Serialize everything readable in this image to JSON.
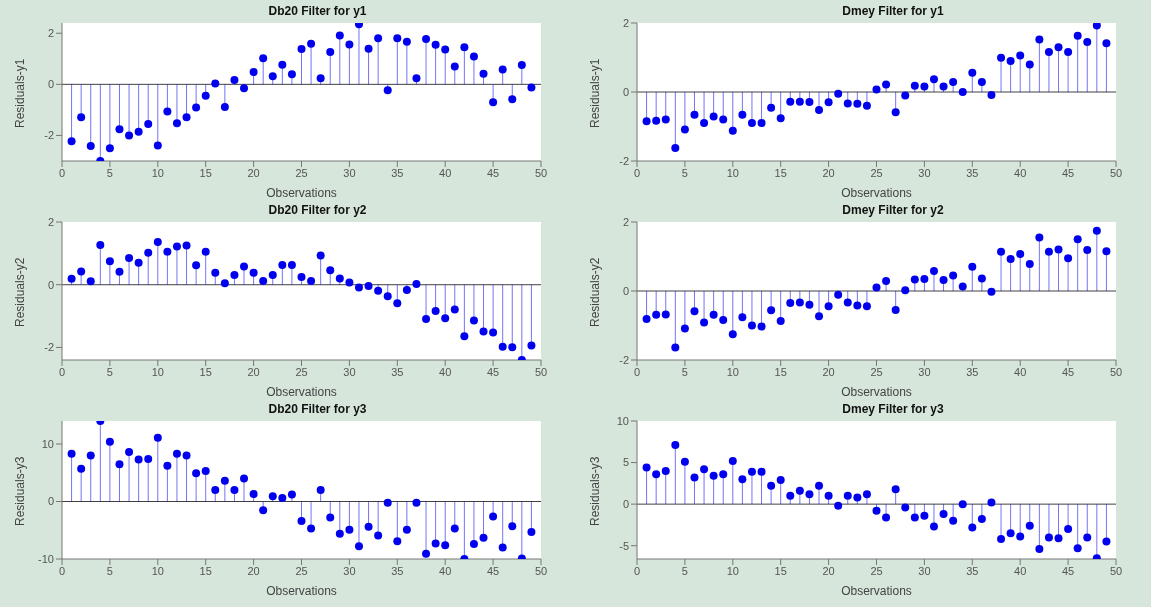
{
  "chart_data": [
    {
      "type": "lollipop",
      "title": "Db20 Filter for y1",
      "xlabel": "Observations",
      "ylabel": "Residuals-y1",
      "marker": "circle",
      "color": "#0000ee",
      "xlim": [
        0,
        50
      ],
      "xticks": [
        0,
        5,
        10,
        15,
        20,
        25,
        30,
        35,
        40,
        45,
        50
      ],
      "ylim": [
        -3,
        2.4
      ],
      "yticks": [
        -2,
        0,
        2
      ],
      "ref_lines": [
        {
          "axis": "y",
          "value": 0,
          "color": "#404040"
        }
      ],
      "x": [
        1,
        2,
        3,
        4,
        5,
        6,
        7,
        8,
        9,
        10,
        11,
        12,
        13,
        14,
        15,
        16,
        17,
        18,
        19,
        20,
        21,
        22,
        23,
        24,
        25,
        26,
        27,
        28,
        29,
        30,
        31,
        32,
        33,
        34,
        35,
        36,
        37,
        38,
        39,
        40,
        41,
        42,
        43,
        44,
        45,
        46,
        47,
        48,
        49
      ],
      "values": [
        -2.23,
        -1.29,
        -2.41,
        -3.0,
        -2.5,
        -1.76,
        -2.0,
        -1.86,
        -1.55,
        -2.39,
        -1.06,
        -1.52,
        -1.29,
        -0.91,
        -0.45,
        0.03,
        -0.89,
        0.17,
        -0.15,
        0.48,
        1.02,
        0.32,
        0.77,
        0.39,
        1.38,
        1.59,
        0.24,
        1.27,
        1.91,
        1.56,
        2.35,
        1.39,
        1.8,
        -0.23,
        1.8,
        1.67,
        0.24,
        1.77,
        1.55,
        1.36,
        0.7,
        1.45,
        1.09,
        0.41,
        -0.7,
        0.58,
        -0.58,
        0.76,
        -0.12
      ]
    },
    {
      "type": "lollipop",
      "title": "Dmey Filter for y1",
      "xlabel": "Observations",
      "ylabel": "Residuals-y1",
      "marker": "circle",
      "color": "#0000ee",
      "xlim": [
        0,
        50
      ],
      "xticks": [
        0,
        5,
        10,
        15,
        20,
        25,
        30,
        35,
        40,
        45,
        50
      ],
      "ylim": [
        -2,
        2
      ],
      "yticks": [
        -2,
        0,
        2
      ],
      "ref_lines": [
        {
          "axis": "y",
          "value": 0,
          "color": "#404040"
        }
      ],
      "x": [
        1,
        2,
        3,
        4,
        5,
        6,
        7,
        8,
        9,
        10,
        11,
        12,
        13,
        14,
        15,
        16,
        17,
        18,
        19,
        20,
        21,
        22,
        23,
        24,
        25,
        26,
        27,
        28,
        29,
        30,
        31,
        32,
        33,
        34,
        35,
        36,
        37,
        38,
        39,
        40,
        41,
        42,
        43,
        44,
        45,
        46,
        47,
        48,
        49
      ],
      "values": [
        -0.85,
        -0.83,
        -0.8,
        -1.62,
        -1.09,
        -0.66,
        -0.9,
        -0.71,
        -0.8,
        -1.12,
        -0.66,
        -0.9,
        -0.9,
        -0.46,
        -0.76,
        -0.28,
        -0.28,
        -0.29,
        -0.52,
        -0.3,
        -0.05,
        -0.33,
        -0.34,
        -0.4,
        0.07,
        0.22,
        -0.59,
        -0.1,
        0.18,
        0.16,
        0.37,
        0.16,
        0.29,
        0.0,
        0.56,
        0.29,
        -0.09,
        0.99,
        0.9,
        1.06,
        0.8,
        1.52,
        1.16,
        1.3,
        1.16,
        1.63,
        1.45,
        1.93,
        1.41
      ]
    },
    {
      "type": "lollipop",
      "title": "Db20 Filter for y2",
      "xlabel": "Observations",
      "ylabel": "Residuals-y2",
      "marker": "circle",
      "color": "#0000ee",
      "xlim": [
        0,
        50
      ],
      "xticks": [
        0,
        5,
        10,
        15,
        20,
        25,
        30,
        35,
        40,
        45,
        50
      ],
      "ylim": [
        -2.4,
        2
      ],
      "yticks": [
        -2,
        0,
        2
      ],
      "ref_lines": [
        {
          "axis": "y",
          "value": 0,
          "color": "#404040"
        }
      ],
      "x": [
        1,
        2,
        3,
        4,
        5,
        6,
        7,
        8,
        9,
        10,
        11,
        12,
        13,
        14,
        15,
        16,
        17,
        18,
        19,
        20,
        21,
        22,
        23,
        24,
        25,
        26,
        27,
        28,
        29,
        30,
        31,
        32,
        33,
        34,
        35,
        36,
        37,
        38,
        39,
        40,
        41,
        42,
        43,
        44,
        45,
        46,
        47,
        48,
        49
      ],
      "values": [
        0.19,
        0.42,
        0.11,
        1.27,
        0.75,
        0.41,
        0.85,
        0.7,
        1.02,
        1.36,
        1.05,
        1.22,
        1.25,
        0.62,
        1.05,
        0.38,
        0.05,
        0.31,
        0.58,
        0.38,
        0.12,
        0.31,
        0.63,
        0.63,
        0.25,
        0.12,
        0.93,
        0.46,
        0.2,
        0.07,
        -0.09,
        -0.04,
        -0.19,
        -0.37,
        -0.59,
        -0.17,
        0.02,
        -1.09,
        -0.84,
        -1.07,
        -0.79,
        -1.64,
        -1.14,
        -1.49,
        -1.52,
        -1.98,
        -1.99,
        -2.4,
        -1.94
      ]
    },
    {
      "type": "lollipop",
      "title": "Dmey Filter for y2",
      "xlabel": "Observations",
      "ylabel": "Residuals-y2",
      "marker": "circle",
      "color": "#0000ee",
      "xlim": [
        0,
        50
      ],
      "xticks": [
        0,
        5,
        10,
        15,
        20,
        25,
        30,
        35,
        40,
        45,
        50
      ],
      "ylim": [
        -2,
        2
      ],
      "yticks": [
        -2,
        0,
        2
      ],
      "ref_lines": [
        {
          "axis": "y",
          "value": 0,
          "color": "#404040"
        }
      ],
      "x": [
        1,
        2,
        3,
        4,
        5,
        6,
        7,
        8,
        9,
        10,
        11,
        12,
        13,
        14,
        15,
        16,
        17,
        18,
        19,
        20,
        21,
        22,
        23,
        24,
        25,
        26,
        27,
        28,
        29,
        30,
        31,
        32,
        33,
        34,
        35,
        36,
        37,
        38,
        39,
        40,
        41,
        42,
        43,
        44,
        45,
        46,
        47,
        48,
        49
      ],
      "values": [
        -0.81,
        -0.69,
        -0.68,
        -1.64,
        -1.09,
        -0.59,
        -0.91,
        -0.69,
        -0.84,
        -1.25,
        -0.76,
        -1.0,
        -1.03,
        -0.56,
        -0.87,
        -0.35,
        -0.33,
        -0.4,
        -0.73,
        -0.44,
        -0.11,
        -0.33,
        -0.42,
        -0.44,
        0.1,
        0.29,
        -0.55,
        0.02,
        0.33,
        0.35,
        0.58,
        0.32,
        0.45,
        0.13,
        0.7,
        0.36,
        -0.02,
        1.14,
        0.93,
        1.07,
        0.78,
        1.55,
        1.14,
        1.2,
        0.95,
        1.5,
        1.19,
        1.75,
        1.15
      ]
    },
    {
      "type": "lollipop",
      "title": "Db20 Filter for y3",
      "xlabel": "Observations",
      "ylabel": "Residuals-y3",
      "marker": "circle",
      "color": "#0000ee",
      "xlim": [
        0,
        50
      ],
      "xticks": [
        0,
        5,
        10,
        15,
        20,
        25,
        30,
        35,
        40,
        45,
        50
      ],
      "ylim": [
        -10,
        14
      ],
      "yticks": [
        -10,
        0,
        10
      ],
      "ref_lines": [
        {
          "axis": "y",
          "value": 0,
          "color": "#404040"
        }
      ],
      "x": [
        1,
        2,
        3,
        4,
        5,
        6,
        7,
        8,
        9,
        10,
        11,
        12,
        13,
        14,
        15,
        16,
        17,
        18,
        19,
        20,
        21,
        22,
        23,
        24,
        25,
        26,
        27,
        28,
        29,
        30,
        31,
        32,
        33,
        34,
        35,
        36,
        37,
        38,
        39,
        40,
        41,
        42,
        43,
        44,
        45,
        46,
        47,
        48,
        49
      ],
      "values": [
        8.3,
        5.7,
        8.0,
        14.0,
        10.4,
        6.5,
        8.6,
        7.3,
        7.4,
        11.1,
        6.2,
        8.3,
        8.0,
        4.9,
        5.3,
        2.0,
        3.6,
        2.0,
        4.0,
        1.3,
        -1.5,
        0.9,
        0.6,
        1.2,
        -3.4,
        -4.7,
        2.0,
        -2.8,
        -5.6,
        -4.9,
        -7.8,
        -4.4,
        -5.9,
        -0.2,
        -6.9,
        -4.9,
        -0.2,
        -9.1,
        -7.3,
        -7.6,
        -4.7,
        -10.0,
        -7.4,
        -6.3,
        -2.6,
        -8.0,
        -4.3,
        -9.9,
        -5.3
      ]
    },
    {
      "type": "lollipop",
      "title": "Dmey Filter for y3",
      "xlabel": "Observations",
      "ylabel": "Residuals-y3",
      "marker": "circle",
      "color": "#0000ee",
      "xlim": [
        0,
        50
      ],
      "xticks": [
        0,
        5,
        10,
        15,
        20,
        25,
        30,
        35,
        40,
        45,
        50
      ],
      "ylim": [
        -6.6,
        10
      ],
      "yticks": [
        -5,
        0,
        5,
        10
      ],
      "ref_lines": [
        {
          "axis": "y",
          "value": 0,
          "color": "#404040"
        }
      ],
      "x": [
        1,
        2,
        3,
        4,
        5,
        6,
        7,
        8,
        9,
        10,
        11,
        12,
        13,
        14,
        15,
        16,
        17,
        18,
        19,
        20,
        21,
        22,
        23,
        24,
        25,
        26,
        27,
        28,
        29,
        30,
        31,
        32,
        33,
        34,
        35,
        36,
        37,
        38,
        39,
        40,
        41,
        42,
        43,
        44,
        45,
        46,
        47,
        48,
        49
      ],
      "values": [
        4.4,
        3.6,
        4.0,
        7.1,
        5.1,
        3.2,
        4.2,
        3.4,
        3.6,
        5.2,
        3.0,
        3.9,
        3.9,
        2.2,
        2.9,
        1.0,
        1.6,
        1.2,
        2.2,
        1.0,
        -0.2,
        1.0,
        0.8,
        1.2,
        -0.8,
        -1.6,
        1.8,
        -0.4,
        -1.6,
        -1.4,
        -2.7,
        -1.2,
        -2.0,
        0.0,
        -2.8,
        -1.8,
        0.2,
        -4.2,
        -3.5,
        -3.9,
        -2.6,
        -5.4,
        -4.0,
        -4.1,
        -3.0,
        -5.3,
        -4.0,
        -6.5,
        -4.5
      ]
    }
  ]
}
